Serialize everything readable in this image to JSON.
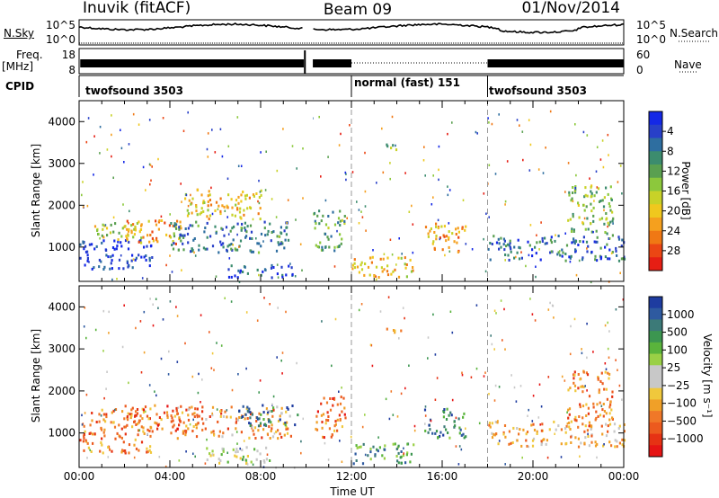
{
  "header": {
    "station": "Inuvik (fitACF)",
    "beam": "Beam 09",
    "date": "01/Nov/2014"
  },
  "status_panels": {
    "nsky_label": "N.Sky",
    "nsky_ticks": [
      "10^5",
      "10^0"
    ],
    "nsearch_label": "N.Search",
    "nsearch_ticks": [
      "10^5",
      "10^0"
    ],
    "freq_label_1": "Freq.",
    "freq_label_2": "[MHz]",
    "freq_ticks": [
      "18",
      "8"
    ],
    "nave_label": "Nave",
    "nave_ticks": [
      "60",
      "0"
    ],
    "cpid_label": "CPID",
    "cpid_segments": [
      {
        "start_h": 0,
        "end_h": 12,
        "label": "twofsound 3503"
      },
      {
        "start_h": 12,
        "end_h": 18,
        "label": "normal (fast) 151"
      },
      {
        "start_h": 18,
        "end_h": 24,
        "label": "twofsound 3503"
      }
    ]
  },
  "chart_data": [
    {
      "type": "heatmap",
      "title": "",
      "ylabel": "Slant Range [km]",
      "xlabel": "",
      "ylim": [
        180,
        4500
      ],
      "xlim_hours": [
        0,
        24
      ],
      "yticks": [
        "1000",
        "2000",
        "3000",
        "4000"
      ],
      "colorbar": {
        "label": "Power [dB]",
        "ticks": [
          "4",
          "8",
          "12",
          "16",
          "20",
          "24",
          "28"
        ],
        "colors": [
          "#1428e6",
          "#2840c8",
          "#2e6ea0",
          "#3c8c6e",
          "#5aa050",
          "#8cc83c",
          "#c8d228",
          "#f0c81e",
          "#f5a01e",
          "#f07814",
          "#eb4614",
          "#e61e14"
        ]
      },
      "regions": [
        {
          "t0": 0.0,
          "t1": 3.2,
          "r0": 500,
          "r1": 1200,
          "level": 0.92
        },
        {
          "t0": 0.3,
          "t1": 2.8,
          "r0": 1200,
          "r1": 1600,
          "level": 0.45
        },
        {
          "t0": 2.0,
          "t1": 4.5,
          "r0": 1100,
          "r1": 1700,
          "level": 0.3
        },
        {
          "t0": 4.0,
          "t1": 9.3,
          "r0": 900,
          "r1": 1650,
          "level": 0.75
        },
        {
          "t0": 6.5,
          "t1": 9.6,
          "r0": 300,
          "r1": 600,
          "level": 0.9
        },
        {
          "t0": 4.5,
          "t1": 8.0,
          "r0": 1700,
          "r1": 2400,
          "level": 0.35
        },
        {
          "t0": 10.3,
          "t1": 11.7,
          "r0": 900,
          "r1": 1900,
          "level": 0.65
        },
        {
          "t0": 12.0,
          "t1": 14.8,
          "r0": 300,
          "r1": 800,
          "level": 0.35
        },
        {
          "t0": 15.2,
          "t1": 17.0,
          "r0": 900,
          "r1": 1600,
          "level": 0.3
        },
        {
          "t0": 13.5,
          "t1": 14.2,
          "r0": 3350,
          "r1": 3550,
          "level": 0.55
        },
        {
          "t0": 18.0,
          "t1": 24.0,
          "r0": 700,
          "r1": 1300,
          "level": 0.8
        },
        {
          "t0": 21.5,
          "t1": 23.5,
          "r0": 1300,
          "r1": 2500,
          "level": 0.55
        }
      ]
    },
    {
      "type": "heatmap",
      "title": "",
      "ylabel": "Slant Range [km]",
      "xlabel": "Time UT",
      "ylim": [
        180,
        4500
      ],
      "xlim_hours": [
        0,
        24
      ],
      "yticks": [
        "1000",
        "2000",
        "3000",
        "4000"
      ],
      "xticks": [
        "00:00",
        "04:00",
        "08:00",
        "12:00",
        "16:00",
        "20:00",
        "00:00"
      ],
      "colorbar": {
        "label": "Velocity [m s⁻¹]",
        "ticks": [
          "1000",
          "500",
          "100",
          "25",
          "−25",
          "−100",
          "−500",
          "−1000"
        ],
        "colors": [
          "#1e3ca0",
          "#2e5aa0",
          "#3c7a78",
          "#3c9650",
          "#5ab43c",
          "#9ad046",
          "#c8c8c8",
          "#c8c8c8",
          "#f0c83c",
          "#f0a028",
          "#f07828",
          "#ec5a1e",
          "#e63214",
          "#e61414"
        ]
      },
      "regions": [
        {
          "t0": 0.0,
          "t1": 3.2,
          "r0": 500,
          "r1": 1200,
          "level": 0.25
        },
        {
          "t0": 0.3,
          "t1": 3.0,
          "r0": 1200,
          "r1": 1600,
          "level": 0.25
        },
        {
          "t0": 2.0,
          "t1": 4.5,
          "r0": 1100,
          "r1": 1700,
          "level": 0.22
        },
        {
          "t0": 4.0,
          "t1": 9.3,
          "r0": 900,
          "r1": 1650,
          "level": 0.3
        },
        {
          "t0": 7.0,
          "t1": 9.6,
          "r0": 1200,
          "r1": 1700,
          "level": 0.85
        },
        {
          "t0": 5.5,
          "t1": 8.5,
          "r0": 300,
          "r1": 700,
          "level": 0.55
        },
        {
          "t0": 10.3,
          "t1": 11.7,
          "r0": 900,
          "r1": 1900,
          "level": 0.22
        },
        {
          "t0": 12.0,
          "t1": 14.8,
          "r0": 300,
          "r1": 800,
          "level": 0.75
        },
        {
          "t0": 15.2,
          "t1": 17.0,
          "r0": 900,
          "r1": 1600,
          "level": 0.8
        },
        {
          "t0": 13.5,
          "t1": 14.2,
          "r0": 3350,
          "r1": 3550,
          "level": 0.2
        },
        {
          "t0": 18.0,
          "t1": 24.0,
          "r0": 700,
          "r1": 1300,
          "level": 0.35
        },
        {
          "t0": 21.5,
          "t1": 23.5,
          "r0": 1300,
          "r1": 2500,
          "level": 0.25
        }
      ]
    }
  ]
}
